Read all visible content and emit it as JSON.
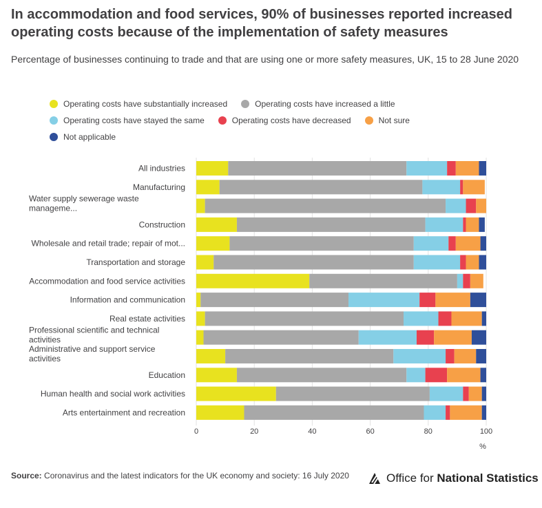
{
  "title": "In accommodation and food services, 90% of businesses reported increased operating costs because of the implementation of safety measures",
  "subtitle": "Percentage of businesses continuing to trade and that are using one or more safety measures, UK, 15 to 28 June 2020",
  "legend": [
    {
      "label": "Operating costs have substantially increased",
      "color": "#e8e21f"
    },
    {
      "label": "Operating costs have increased a little",
      "color": "#a8a8a8"
    },
    {
      "label": "Operating costs have stayed the same",
      "color": "#85cfe6"
    },
    {
      "label": "Operating costs have decreased",
      "color": "#e8414f"
    },
    {
      "label": "Not sure",
      "color": "#f7a046"
    },
    {
      "label": "Not applicable",
      "color": "#2f4f9a"
    }
  ],
  "source": {
    "label": "Source:",
    "text": "Coronavirus and the latest indicators for the UK economy and society: 16 July 2020"
  },
  "logo": {
    "prefix": "Office for ",
    "bold": "National Statistics"
  },
  "chart_data": {
    "type": "bar",
    "orientation": "horizontal",
    "stacked": true,
    "categories": [
      "All industries",
      "Manufacturing",
      "Water supply sewerage waste manageme...",
      "Construction",
      "Wholesale and retail trade; repair of mot...",
      "Transportation and storage",
      "Accommodation and food service activities",
      "Information and communication",
      "Real estate activities",
      "Professional scientific and technical activities",
      "Administrative and support service activities",
      "Education",
      "Human health and social work activities",
      "Arts entertainment and recreation"
    ],
    "series": [
      {
        "name": "Operating costs have substantially increased",
        "color": "#e8e21f",
        "values": [
          11,
          8,
          3,
          14,
          11.5,
          6,
          39,
          1.5,
          3,
          2.5,
          10,
          14,
          27.5,
          16.5
        ]
      },
      {
        "name": "Operating costs have increased a little",
        "color": "#a8a8a8",
        "values": [
          61.5,
          70,
          83,
          65,
          63.5,
          69,
          51,
          51,
          68.5,
          53.5,
          58,
          58.5,
          53,
          62
        ]
      },
      {
        "name": "Operating costs have stayed the same",
        "color": "#85cfe6",
        "values": [
          14,
          13,
          7,
          13,
          12,
          16,
          2,
          24.5,
          12,
          20,
          18,
          6.5,
          11.5,
          7.5
        ]
      },
      {
        "name": "Operating costs have decreased",
        "color": "#e8414f",
        "values": [
          3,
          1,
          3.5,
          1,
          2.5,
          2,
          2.5,
          5.5,
          4.5,
          6,
          3,
          7.5,
          2,
          1.5
        ]
      },
      {
        "name": "Not sure",
        "color": "#f7a046",
        "values": [
          8,
          7.5,
          3.5,
          4.5,
          8.5,
          4.5,
          4.5,
          12,
          10.5,
          13,
          7.5,
          11.5,
          4.5,
          11
        ]
      },
      {
        "name": "Not applicable",
        "color": "#2f4f9a",
        "values": [
          2.5,
          0,
          0,
          2,
          2,
          2.5,
          0,
          5.5,
          1.5,
          5,
          3.5,
          2,
          1.5,
          1.5
        ]
      }
    ],
    "xticks": [
      "0",
      "20",
      "40",
      "60",
      "80",
      "100"
    ],
    "xlim": [
      0,
      100
    ],
    "xlabel": "%",
    "legend_position": "top"
  }
}
